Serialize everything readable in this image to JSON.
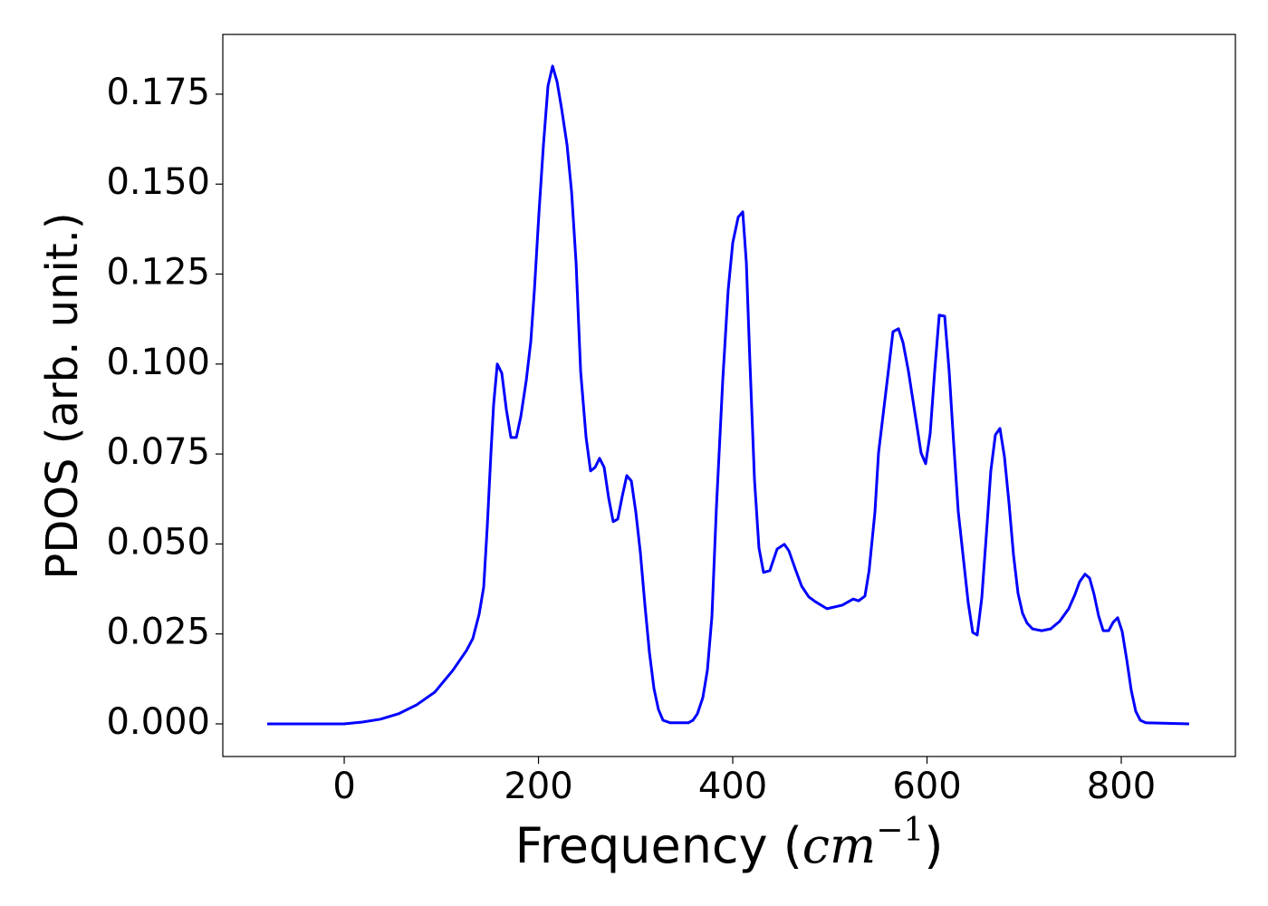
{
  "chart_data": {
    "type": "line",
    "ylabel": "PDOS (arb. unit.)",
    "xlabel": [
      "Frequency (",
      "cm",
      "−1",
      ")"
    ],
    "color": "#0000ff",
    "xlim": [
      -125,
      917.5
    ],
    "ylim": [
      -0.00907,
      0.1916
    ],
    "xticks": [
      0,
      200,
      400,
      600,
      800
    ],
    "yticks": [
      {
        "value": 0,
        "label": "0.000"
      },
      {
        "value": 0.025,
        "label": "0.025"
      },
      {
        "value": 0.05,
        "label": "0.050"
      },
      {
        "value": 0.075,
        "label": "0.075"
      },
      {
        "value": 0.1,
        "label": "0.100"
      },
      {
        "value": 0.125,
        "label": "0.125"
      },
      {
        "value": 0.15,
        "label": "0.150"
      },
      {
        "value": 0.175,
        "label": "0.175"
      }
    ],
    "x": [
      -79.3,
      0,
      18.6,
      37.3,
      55.9,
      74.6,
      93.2,
      111.9,
      125.9,
      132.4,
      138.9,
      143.6,
      147.3,
      151.0,
      153.8,
      157.6,
      162.2,
      166.9,
      171.6,
      177.2,
      181.8,
      187.4,
      192.1,
      195.8,
      200.5,
      205.1,
      209.8,
      214.5,
      219.1,
      223.8,
      229.4,
      234.1,
      238.7,
      243.4,
      249.0,
      253.6,
      258.3,
      262.9,
      267.6,
      272.3,
      276.9,
      281.6,
      286.2,
      290.9,
      295.6,
      300.2,
      304.9,
      309.6,
      314.2,
      318.9,
      323.5,
      328.2,
      335.7,
      354.3,
      359.0,
      363.6,
      369.2,
      373.9,
      378.6,
      383.2,
      389.7,
      395.3,
      400.0,
      405.6,
      410.3,
      414.0,
      417.7,
      422.4,
      427.0,
      431.7,
      438.2,
      445.7,
      453.1,
      457.8,
      464.3,
      470.9,
      478.3,
      484.8,
      497.0,
      512.8,
      524.0,
      529.6,
      536.1,
      540.4,
      546.4,
      550.1,
      555.7,
      561.3,
      565.0,
      570.6,
      575.3,
      580.9,
      587.4,
      593.9,
      598.6,
      603.3,
      607.9,
      612.6,
      618.2,
      622.8,
      627.5,
      632.2,
      637.8,
      642.4,
      647.1,
      651.7,
      656.4,
      661.1,
      665.7,
      670.4,
      675.1,
      679.7,
      684.4,
      689.0,
      693.7,
      698.4,
      703.0,
      708.6,
      718.0,
      727.3,
      736.6,
      745.9,
      752.4,
      757.1,
      762.7,
      767.4,
      772.0,
      776.7,
      781.4,
      787.0,
      791.6,
      796.3,
      800.9,
      805.6,
      810.3,
      814.9,
      819.6,
      825.2,
      869.9
    ],
    "values": [
      0,
      0,
      0.0005,
      0.0013,
      0.0028,
      0.0053,
      0.0088,
      0.0149,
      0.0204,
      0.0237,
      0.0305,
      0.038,
      0.055,
      0.075,
      0.0887,
      0.1,
      0.0975,
      0.0874,
      0.0796,
      0.0796,
      0.0854,
      0.0954,
      0.1063,
      0.1206,
      0.142,
      0.1609,
      0.1773,
      0.1828,
      0.1785,
      0.171,
      0.1609,
      0.1478,
      0.1282,
      0.098,
      0.0796,
      0.0703,
      0.0713,
      0.0738,
      0.0713,
      0.0627,
      0.0562,
      0.0569,
      0.0632,
      0.069,
      0.0675,
      0.0589,
      0.0476,
      0.033,
      0.0199,
      0.0098,
      0.004,
      0.001,
      0.0003,
      0.0003,
      0.001,
      0.0028,
      0.0073,
      0.0149,
      0.03,
      0.0602,
      0.0954,
      0.1206,
      0.1337,
      0.1408,
      0.1423,
      0.1282,
      0.1005,
      0.0678,
      0.0489,
      0.0421,
      0.0426,
      0.0486,
      0.0499,
      0.0481,
      0.0431,
      0.0383,
      0.0353,
      0.034,
      0.032,
      0.033,
      0.0347,
      0.0342,
      0.0355,
      0.0426,
      0.0589,
      0.0753,
      0.0879,
      0.1005,
      0.109,
      0.1098,
      0.106,
      0.098,
      0.0866,
      0.0753,
      0.0723,
      0.0808,
      0.098,
      0.1136,
      0.1133,
      0.098,
      0.0778,
      0.0589,
      0.0451,
      0.0337,
      0.0254,
      0.0247,
      0.035,
      0.0526,
      0.0703,
      0.0803,
      0.0821,
      0.0743,
      0.0614,
      0.0471,
      0.0363,
      0.0307,
      0.028,
      0.0264,
      0.0259,
      0.0264,
      0.0285,
      0.032,
      0.036,
      0.0395,
      0.0416,
      0.0405,
      0.036,
      0.03,
      0.0259,
      0.0259,
      0.0282,
      0.0295,
      0.0257,
      0.0179,
      0.0093,
      0.0035,
      0.001,
      0.0003,
      0
    ]
  }
}
